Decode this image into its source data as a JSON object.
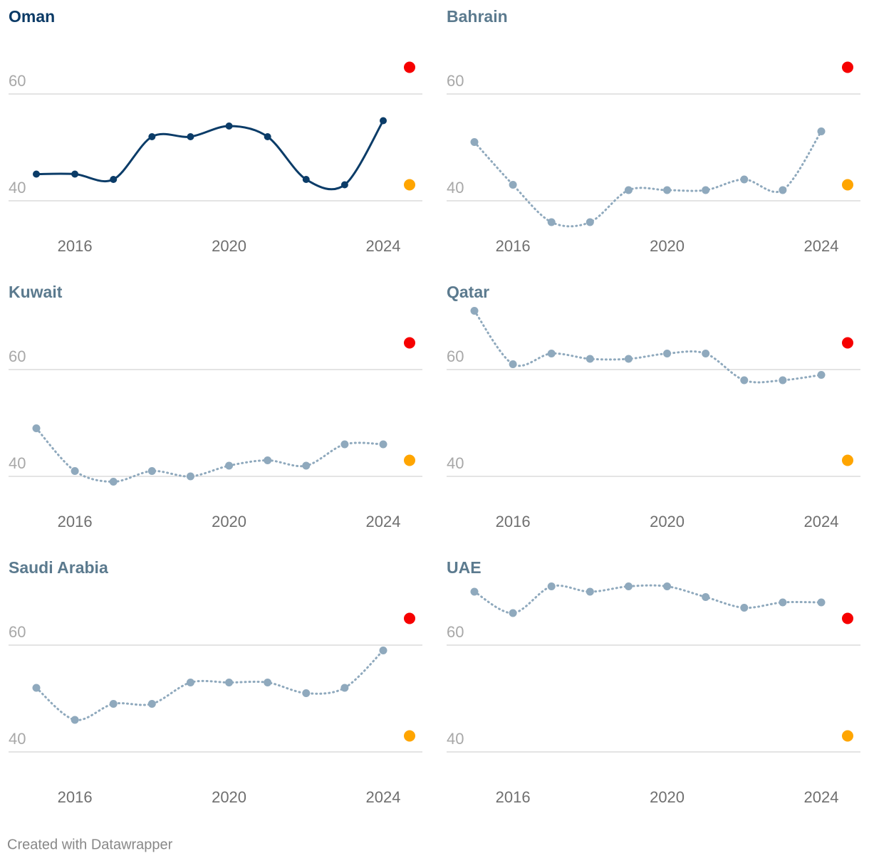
{
  "chart_data": [
    {
      "type": "line",
      "title": "Oman",
      "title_color": "#0b3a66",
      "line_style": "solid",
      "x": [
        2015,
        2016,
        2017,
        2018,
        2019,
        2020,
        2021,
        2022,
        2023,
        2024
      ],
      "series": [
        {
          "color": "#0b3c68",
          "values": [
            45,
            45,
            44,
            52,
            52,
            54,
            52,
            44,
            43,
            55
          ]
        }
      ],
      "xlim": [
        2015,
        2024
      ],
      "xticks": [
        2016,
        2020,
        2024
      ],
      "ylim": [
        35,
        72
      ],
      "yticks": [
        40,
        60
      ],
      "grid": true,
      "markers": [
        {
          "value": 65,
          "color": "#f60000"
        },
        {
          "value": 43,
          "color": "#ffa500"
        }
      ]
    },
    {
      "type": "line",
      "title": "Bahrain",
      "title_color": "#5b7a8e",
      "line_style": "dotted",
      "x": [
        2015,
        2016,
        2017,
        2018,
        2019,
        2020,
        2021,
        2022,
        2023,
        2024
      ],
      "series": [
        {
          "color": "#8fa9bd",
          "values": [
            51,
            43,
            36,
            36,
            42,
            42,
            42,
            44,
            42,
            53
          ]
        }
      ],
      "xlim": [
        2015,
        2024
      ],
      "xticks": [
        2016,
        2020,
        2024
      ],
      "ylim": [
        35,
        72
      ],
      "yticks": [
        40,
        60
      ],
      "grid": true,
      "markers": [
        {
          "value": 65,
          "color": "#f60000"
        },
        {
          "value": 43,
          "color": "#ffa500"
        }
      ]
    },
    {
      "type": "line",
      "title": "Kuwait",
      "title_color": "#5b7a8e",
      "line_style": "dotted",
      "x": [
        2015,
        2016,
        2017,
        2018,
        2019,
        2020,
        2021,
        2022,
        2023,
        2024
      ],
      "series": [
        {
          "color": "#8fa9bd",
          "values": [
            49,
            41,
            39,
            41,
            40,
            42,
            43,
            42,
            46,
            46
          ]
        }
      ],
      "xlim": [
        2015,
        2024
      ],
      "xticks": [
        2016,
        2020,
        2024
      ],
      "ylim": [
        35,
        72
      ],
      "yticks": [
        40,
        60
      ],
      "grid": true,
      "markers": [
        {
          "value": 65,
          "color": "#f60000"
        },
        {
          "value": 43,
          "color": "#ffa500"
        }
      ]
    },
    {
      "type": "line",
      "title": "Qatar",
      "title_color": "#5b7a8e",
      "line_style": "dotted",
      "x": [
        2015,
        2016,
        2017,
        2018,
        2019,
        2020,
        2021,
        2022,
        2023,
        2024
      ],
      "series": [
        {
          "color": "#8fa9bd",
          "values": [
            71,
            61,
            63,
            62,
            62,
            63,
            63,
            58,
            58,
            59
          ]
        }
      ],
      "xlim": [
        2015,
        2024
      ],
      "xticks": [
        2016,
        2020,
        2024
      ],
      "ylim": [
        35,
        72
      ],
      "yticks": [
        40,
        60
      ],
      "grid": true,
      "markers": [
        {
          "value": 65,
          "color": "#f60000"
        },
        {
          "value": 43,
          "color": "#ffa500"
        }
      ]
    },
    {
      "type": "line",
      "title": "Saudi Arabia",
      "title_color": "#5b7a8e",
      "line_style": "dotted",
      "x": [
        2015,
        2016,
        2017,
        2018,
        2019,
        2020,
        2021,
        2022,
        2023,
        2024
      ],
      "series": [
        {
          "color": "#8fa9bd",
          "values": [
            52,
            46,
            49,
            49,
            53,
            53,
            53,
            51,
            52,
            59
          ]
        }
      ],
      "xlim": [
        2015,
        2024
      ],
      "xticks": [
        2016,
        2020,
        2024
      ],
      "ylim": [
        35,
        72
      ],
      "yticks": [
        40,
        60
      ],
      "grid": true,
      "markers": [
        {
          "value": 65,
          "color": "#f60000"
        },
        {
          "value": 43,
          "color": "#ffa500"
        }
      ]
    },
    {
      "type": "line",
      "title": "UAE",
      "title_color": "#5b7a8e",
      "line_style": "dotted",
      "x": [
        2015,
        2016,
        2017,
        2018,
        2019,
        2020,
        2021,
        2022,
        2023,
        2024
      ],
      "series": [
        {
          "color": "#8fa9bd",
          "values": [
            70,
            66,
            71,
            70,
            71,
            71,
            69,
            67,
            68,
            68
          ]
        }
      ],
      "xlim": [
        2015,
        2024
      ],
      "xticks": [
        2016,
        2020,
        2024
      ],
      "ylim": [
        35,
        72
      ],
      "yticks": [
        40,
        60
      ],
      "grid": true,
      "markers": [
        {
          "value": 65,
          "color": "#f60000"
        },
        {
          "value": 43,
          "color": "#ffa500"
        }
      ]
    }
  ],
  "credit": "Created with Datawrapper"
}
